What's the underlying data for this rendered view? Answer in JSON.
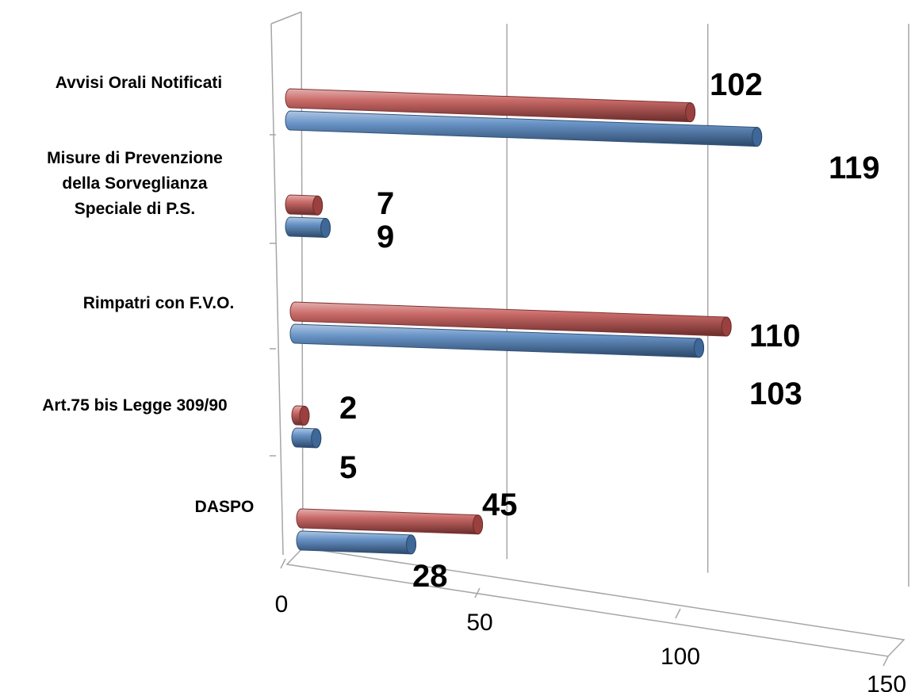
{
  "chart_data": {
    "type": "bar",
    "orientation": "horizontal",
    "style": "3d-cylinder",
    "categories": [
      "Avvisi Orali Notificati",
      "Misure di Prevenzione della Sorveglianza Speciale di P.S.",
      "Rimpatri con F.V.O.",
      "Art.75 bis Legge 309/90",
      "DASPO"
    ],
    "category_lines": [
      [
        "Avvisi Orali Notificati"
      ],
      [
        "Misure di Prevenzione",
        "della Sorveglianza",
        "Speciale di P.S."
      ],
      [
        "Rimpatri con F.V.O."
      ],
      [
        "Art.75 bis Legge 309/90"
      ],
      [
        "DASPO"
      ]
    ],
    "series": [
      {
        "color": "#c0504d",
        "values": [
          102,
          7,
          110,
          2,
          45
        ]
      },
      {
        "color": "#4f81bd",
        "values": [
          119,
          9,
          103,
          5,
          28
        ]
      }
    ],
    "xlim": [
      0,
      150
    ],
    "xticks": [
      "0",
      "50",
      "100",
      "150"
    ],
    "title": "",
    "xlabel": "",
    "ylabel": "",
    "grid": true,
    "legend": "none"
  }
}
